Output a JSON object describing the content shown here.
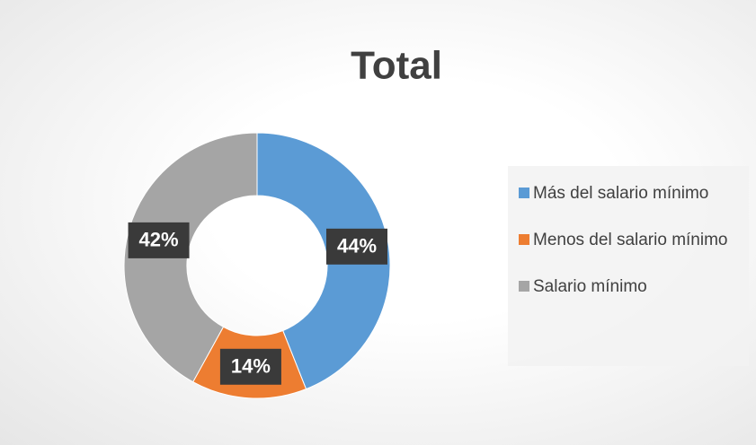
{
  "chart_data": {
    "type": "donut",
    "title": "Total",
    "categories": [
      "Más del salario mínimo",
      "Menos del salario mínimo",
      "Salario mínimo"
    ],
    "values": [
      44,
      14,
      42
    ],
    "value_labels": [
      "44%",
      "14%",
      "42%"
    ],
    "colors": [
      "#5b9bd5",
      "#ed7d31",
      "#a5a5a5"
    ],
    "legend": "right"
  }
}
